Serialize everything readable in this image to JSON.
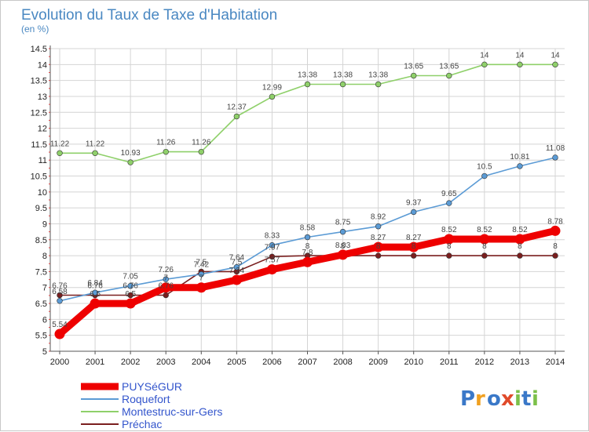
{
  "chart_data": {
    "type": "line",
    "title": "Evolution du Taux de Taxe d'Habitation",
    "subtitle": "(en %)",
    "xlabel": "",
    "ylabel": "",
    "x": [
      "2000",
      "2001",
      "2002",
      "2003",
      "2004",
      "2005",
      "2006",
      "2007",
      "2008",
      "2009",
      "2010",
      "2011",
      "2012",
      "2013",
      "2014"
    ],
    "ylim": [
      5,
      14.5
    ],
    "yticks": [
      "5",
      "5.5",
      "6",
      "6.5",
      "7",
      "7.5",
      "8",
      "8.5",
      "9",
      "9.5",
      "10",
      "10.5",
      "11",
      "11.5",
      "12",
      "12.5",
      "13",
      "13.5",
      "14",
      "14.5"
    ],
    "grid": true,
    "legend_position": "bottom-left",
    "series": [
      {
        "name": "Préchac",
        "color": "#7a1f1f",
        "values": [
          6.76,
          6.76,
          6.76,
          6.76,
          7.5,
          7.5,
          7.97,
          8,
          8,
          8,
          8,
          8,
          8,
          8,
          8
        ],
        "labels": [
          "6.76",
          "6.76",
          "6.76",
          "6.76",
          "7.5",
          "7.5",
          "7.97",
          "8",
          "8",
          "8",
          "8",
          "8",
          "8",
          "8",
          "8"
        ]
      },
      {
        "name": "Montestruc-sur-Gers",
        "color": "#8fd06a",
        "values": [
          11.22,
          11.22,
          10.93,
          11.26,
          11.26,
          12.37,
          12.99,
          13.38,
          13.38,
          13.38,
          13.65,
          13.65,
          14,
          14,
          14
        ],
        "labels": [
          "11.22",
          "11.22",
          "10.93",
          "11.26",
          "11.26",
          "12.37",
          "12.99",
          "13.38",
          "13.38",
          "13.38",
          "13.65",
          "13.65",
          "14",
          "14",
          "14"
        ]
      },
      {
        "name": "Roquefort",
        "color": "#5b9bd5",
        "values": [
          6.58,
          6.84,
          7.05,
          7.26,
          7.42,
          7.64,
          8.33,
          8.58,
          8.75,
          8.92,
          9.37,
          9.65,
          10.5,
          10.81,
          11.08
        ],
        "labels": [
          "6.58",
          "6.84",
          "7.05",
          "7.26",
          "7.42",
          "7.64",
          "8.33",
          "8.58",
          "8.75",
          "8.92",
          "9.37",
          "9.65",
          "10.5",
          "10.81",
          "11.08"
        ]
      },
      {
        "name": "PUYSéGUR",
        "color": "#ee0000",
        "values": [
          5.54,
          6.5,
          6.5,
          7.0,
          7.0,
          7.24,
          7.57,
          7.8,
          8.03,
          8.27,
          8.27,
          8.52,
          8.52,
          8.52,
          8.78
        ],
        "labels": [
          "5.54",
          "6.5",
          "6.5",
          "7",
          "7",
          "7.24",
          "7.57",
          "7.8",
          "8.03",
          "8.27",
          "8.27",
          "8.52",
          "8.52",
          "8.52",
          "8.78"
        ]
      }
    ],
    "legend": [
      "PUYSéGUR",
      "Roquefort",
      "Montestruc-sur-Gers",
      "Préchac"
    ]
  },
  "logo": {
    "letters": [
      "P",
      "r",
      "o",
      "x",
      "i",
      "t",
      "i"
    ]
  }
}
